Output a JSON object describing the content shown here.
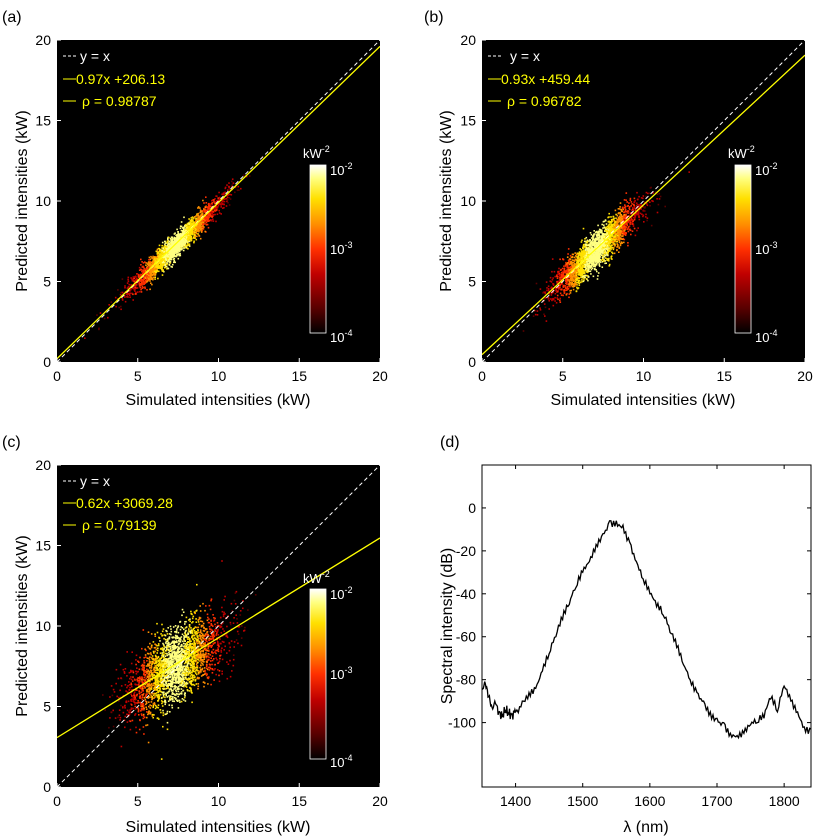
{
  "panels": [
    {
      "label": "(a)",
      "xlabel": "Simulated intensities (kW)",
      "ylabel": "Predicted intensities (kW)",
      "legend": [
        "y = x",
        "0.97x +206.13",
        "ρ = 0.98787"
      ],
      "colorbar_title": "kW",
      "colorbar_title_exp": "-2",
      "colorbar_ticks": [
        {
          "base": "10",
          "exp": "-2"
        },
        {
          "base": "10",
          "exp": "-3"
        },
        {
          "base": "10",
          "exp": "-4"
        }
      ]
    },
    {
      "label": "(b)",
      "xlabel": "Simulated intensities (kW)",
      "ylabel": "Predicted intensities (kW)",
      "legend": [
        "y = x",
        "0.93x +459.44",
        "ρ = 0.96782"
      ],
      "colorbar_title": "kW",
      "colorbar_title_exp": "-2",
      "colorbar_ticks": [
        {
          "base": "10",
          "exp": "-2"
        },
        {
          "base": "10",
          "exp": "-3"
        },
        {
          "base": "10",
          "exp": "-4"
        }
      ]
    },
    {
      "label": "(c)",
      "xlabel": "Simulated intensities (kW)",
      "ylabel": "Predicted intensities (kW)",
      "legend": [
        "y = x",
        "0.62x +3069.28",
        "ρ = 0.79139"
      ],
      "colorbar_title": "kW",
      "colorbar_title_exp": "-2",
      "colorbar_ticks": [
        {
          "base": "10",
          "exp": "-2"
        },
        {
          "base": "10",
          "exp": "-3"
        },
        {
          "base": "10",
          "exp": "-4"
        }
      ]
    },
    {
      "label": "(d)",
      "xlabel": "λ (nm)",
      "ylabel": "Spectral intensity (dB)"
    }
  ],
  "colors": {
    "plot_background": "#000000",
    "identity_line": "#ffffff",
    "fit_line": "#ffff00",
    "legend_text": "#ffff00",
    "spectrum_line": "#000000",
    "colormap": [
      "#000000",
      "#5a0000",
      "#c00000",
      "#ff3000",
      "#ff9000",
      "#ffe000",
      "#ffff80",
      "#ffffff"
    ]
  },
  "chart_data": [
    {
      "type": "scatter",
      "subtype": "density-heatmap",
      "xlim": [
        0,
        20
      ],
      "ylim": [
        0,
        20
      ],
      "xticks": [
        0,
        5,
        10,
        15,
        20
      ],
      "yticks": [
        0,
        5,
        10,
        15,
        20
      ],
      "fit": {
        "slope": 0.97,
        "intercept_kW": 0.20613
      },
      "rho": 0.98787,
      "cloud": {
        "x_mean": 7.3,
        "x_sd": 1.4,
        "noise_sd": 0.35
      },
      "colorbar": {
        "scale": "log",
        "range": [
          0.0001,
          0.01
        ]
      },
      "grid": false,
      "legend_position": "top-left"
    },
    {
      "type": "scatter",
      "subtype": "density-heatmap",
      "xlim": [
        0,
        20
      ],
      "ylim": [
        0,
        20
      ],
      "xticks": [
        0,
        5,
        10,
        15,
        20
      ],
      "yticks": [
        0,
        5,
        10,
        15,
        20
      ],
      "fit": {
        "slope": 0.93,
        "intercept_kW": 0.45944
      },
      "rho": 0.96782,
      "cloud": {
        "x_mean": 7.0,
        "x_sd": 1.35,
        "noise_sd": 0.55
      },
      "colorbar": {
        "scale": "log",
        "range": [
          0.0001,
          0.01
        ]
      },
      "grid": false,
      "legend_position": "top-left"
    },
    {
      "type": "scatter",
      "subtype": "density-heatmap",
      "xlim": [
        0,
        20
      ],
      "ylim": [
        0,
        20
      ],
      "xticks": [
        0,
        5,
        10,
        15,
        20
      ],
      "yticks": [
        0,
        5,
        10,
        15,
        20
      ],
      "fit": {
        "slope": 0.62,
        "intercept_kW": 3.06928
      },
      "rho": 0.79139,
      "cloud": {
        "x_mean": 7.3,
        "x_sd": 1.5,
        "noise_sd": 1.1
      },
      "colorbar": {
        "scale": "log",
        "range": [
          0.0001,
          0.01
        ]
      },
      "grid": false,
      "legend_position": "top-left"
    },
    {
      "type": "line",
      "xlim": [
        1350,
        1840
      ],
      "ylim": [
        -130,
        20
      ],
      "xticks": [
        1400,
        1500,
        1600,
        1700,
        1800
      ],
      "yticks": [
        -100,
        -80,
        -60,
        -40,
        -20,
        0
      ],
      "grid": false,
      "series": [
        {
          "x": [
            1350,
            1355,
            1360,
            1365,
            1370,
            1375,
            1380,
            1385,
            1390,
            1395,
            1400,
            1410,
            1420,
            1430,
            1440,
            1450,
            1460,
            1470,
            1480,
            1490,
            1500,
            1510,
            1520,
            1530,
            1540,
            1550,
            1560,
            1570,
            1580,
            1590,
            1600,
            1610,
            1620,
            1630,
            1640,
            1650,
            1660,
            1670,
            1680,
            1690,
            1700,
            1710,
            1720,
            1730,
            1740,
            1750,
            1760,
            1770,
            1780,
            1790,
            1800,
            1810,
            1820,
            1830,
            1840
          ],
          "values": [
            -84,
            -82,
            -88,
            -93,
            -91,
            -95,
            -97,
            -94,
            -96,
            -96,
            -95,
            -90,
            -86,
            -84,
            -76,
            -68,
            -60,
            -52,
            -45,
            -37,
            -30,
            -25,
            -17,
            -12,
            -6,
            -6,
            -8,
            -16,
            -25,
            -33,
            -40,
            -46,
            -50,
            -58,
            -65,
            -73,
            -80,
            -86,
            -90,
            -95,
            -98,
            -100,
            -105,
            -106,
            -105,
            -101,
            -100,
            -98,
            -89,
            -95,
            -83,
            -90,
            -95,
            -102,
            -103
          ]
        }
      ]
    }
  ]
}
